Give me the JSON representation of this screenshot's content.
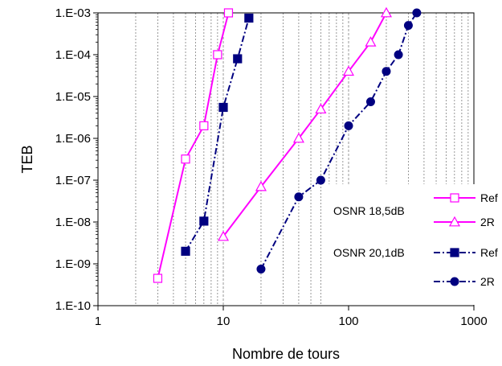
{
  "chart_data": {
    "type": "line",
    "xlabel": "Nombre de tours",
    "ylabel": "TEB",
    "xscale": "log",
    "yscale": "log",
    "xlim": [
      1,
      1000
    ],
    "ylim": [
      1e-10,
      0.001
    ],
    "x_ticks": [
      {
        "value": 1,
        "label": "1"
      },
      {
        "value": 10,
        "label": "10"
      },
      {
        "value": 100,
        "label": "100"
      },
      {
        "value": 1000,
        "label": "1000"
      }
    ],
    "y_ticks": [
      {
        "value": 0.001,
        "label": "1.E-03"
      },
      {
        "value": 0.0001,
        "label": "1.E-04"
      },
      {
        "value": 1e-05,
        "label": "1.E-05"
      },
      {
        "value": 1e-06,
        "label": "1.E-06"
      },
      {
        "value": 1e-07,
        "label": "1.E-07"
      },
      {
        "value": 1e-08,
        "label": "1.E-08"
      },
      {
        "value": 1e-09,
        "label": "1.E-09"
      },
      {
        "value": 1e-10,
        "label": "1.E-10"
      }
    ],
    "grid": {
      "vertical_minor": true,
      "horizontal": false
    },
    "legend": {
      "placement": "bottom-right",
      "groups": [
        {
          "label": "OSNR 18,5dB",
          "series_indices": [
            0,
            1
          ]
        },
        {
          "label": "OSNR 20,1dB",
          "series_indices": [
            2,
            3
          ]
        }
      ]
    },
    "series": [
      {
        "name": "Ref",
        "group": "OSNR 18,5dB",
        "color": "#ff00ff",
        "marker": "square-open",
        "line": "solid",
        "x": [
          3,
          5,
          7,
          9,
          11
        ],
        "y": [
          4.5e-10,
          3.2e-07,
          2e-06,
          0.0001,
          0.001
        ]
      },
      {
        "name": "2R",
        "group": "OSNR 18,5dB",
        "color": "#ff00ff",
        "marker": "triangle-open",
        "line": "solid",
        "x": [
          10,
          20,
          40,
          60,
          100,
          150,
          200
        ],
        "y": [
          4.5e-09,
          7e-08,
          1e-06,
          5e-06,
          4e-05,
          0.0002,
          0.001
        ]
      },
      {
        "name": "Ref",
        "group": "OSNR 20,1dB",
        "color": "#000080",
        "marker": "square-filled",
        "line": "dashdot",
        "x": [
          5,
          7,
          10,
          13,
          16
        ],
        "y": [
          2e-09,
          1.05e-08,
          5.5e-06,
          8e-05,
          0.00075
        ]
      },
      {
        "name": "2R",
        "group": "OSNR 20,1dB",
        "color": "#000080",
        "marker": "circle-filled",
        "line": "dashdot",
        "x": [
          20,
          40,
          60,
          100,
          150,
          200,
          250,
          300,
          350
        ],
        "y": [
          7.5e-10,
          4e-08,
          1e-07,
          2e-06,
          7.5e-06,
          4e-05,
          0.0001,
          0.0005,
          0.001
        ]
      }
    ]
  }
}
